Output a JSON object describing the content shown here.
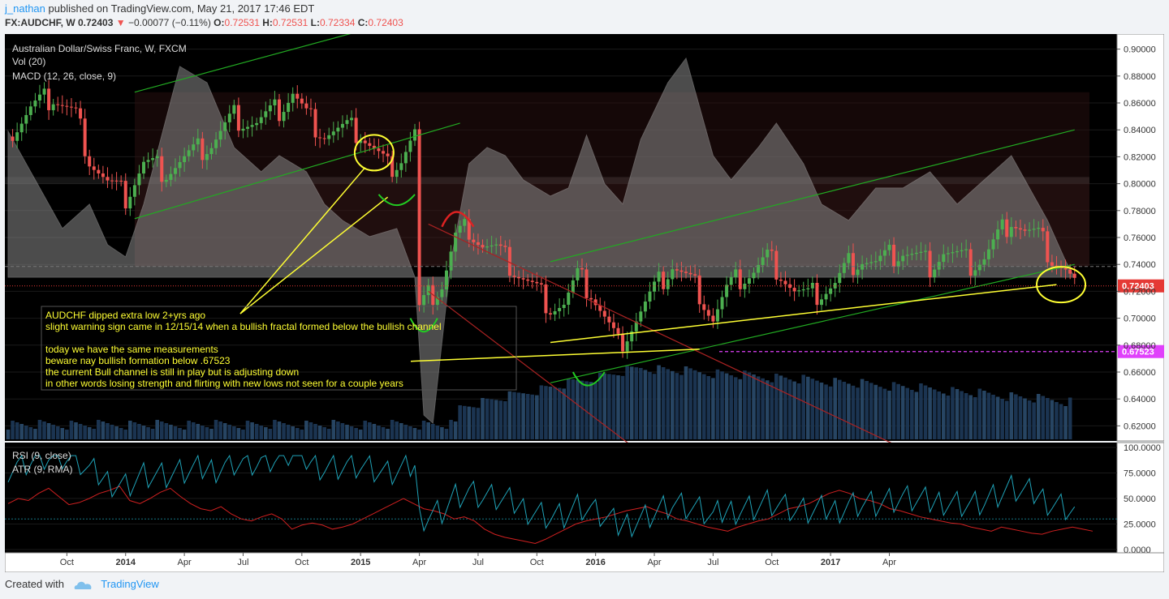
{
  "header": {
    "user": "j_nathan",
    "published": "published on TradingView.com, May 21, 2017 17:46 EDT",
    "symbol": "FX:AUDCHF, W",
    "last": "0.72403",
    "change": "−0.00077 (−0.11%)",
    "o_label": "O:",
    "o": "0.72531",
    "h_label": "H:",
    "h": "0.72531",
    "l_label": "L:",
    "l": "0.72334",
    "c_label": "C:",
    "c": "0.72403"
  },
  "footer": {
    "created_with": "Created with",
    "brand": "TradingView"
  },
  "colors": {
    "bg": "#000000",
    "up": "#4caf50",
    "down": "#ef5350",
    "axis_bg": "#ffffff",
    "annotation": "#ffff33",
    "channel": "#22aa22",
    "down_channel": "#aa2222",
    "rsi": "#1fa3b8",
    "atr": "#d02020",
    "price_tag": "#e53935",
    "level_tag": "#e040fb"
  },
  "chart_data": [
    {
      "type": "candlestick",
      "title": "Australian Dollar/Swiss Franc, W, FXCM",
      "indicator_labels": [
        "Vol (20)",
        "MACD (12, 26, close, 9)"
      ],
      "y_ticks": [
        "0.90000",
        "0.88000",
        "0.86000",
        "0.84000",
        "0.82000",
        "0.80000",
        "0.78000",
        "0.76000",
        "0.74000",
        "0.72000",
        "0.70000",
        "0.68000",
        "0.66000",
        "0.64000",
        "0.62000"
      ],
      "ylim": [
        0.61,
        0.91
      ],
      "x_ticks": [
        "Oct",
        "2014",
        "Apr",
        "Jul",
        "Oct",
        "2015",
        "Apr",
        "Jul",
        "Oct",
        "2016",
        "Apr",
        "Jul",
        "Oct",
        "2017",
        "Apr"
      ],
      "last_price": {
        "label": "0.72403",
        "value": 0.72403
      },
      "level": {
        "label": "0.67523",
        "value": 0.67523
      },
      "ref_level": 0.7385,
      "price_path": [
        [
          0,
          0.835
        ],
        [
          5,
          0.855
        ],
        [
          10,
          0.865
        ],
        [
          15,
          0.85
        ],
        [
          18,
          0.82
        ],
        [
          22,
          0.8
        ],
        [
          26,
          0.79
        ],
        [
          30,
          0.815
        ],
        [
          35,
          0.81
        ],
        [
          40,
          0.82
        ],
        [
          45,
          0.83
        ],
        [
          50,
          0.85
        ],
        [
          55,
          0.845
        ],
        [
          60,
          0.855
        ],
        [
          63,
          0.868
        ],
        [
          66,
          0.85
        ],
        [
          70,
          0.838
        ],
        [
          75,
          0.84
        ],
        [
          78,
          0.838
        ],
        [
          81,
          0.825
        ],
        [
          84,
          0.812
        ],
        [
          87,
          0.82
        ],
        [
          90,
          0.838
        ],
        [
          91,
          0.705
        ],
        [
          93,
          0.715
        ],
        [
          96,
          0.725
        ],
        [
          99,
          0.76
        ],
        [
          102,
          0.768
        ],
        [
          105,
          0.755
        ],
        [
          108,
          0.75
        ],
        [
          111,
          0.74
        ],
        [
          114,
          0.73
        ],
        [
          117,
          0.72
        ],
        [
          120,
          0.71
        ],
        [
          123,
          0.71
        ],
        [
          126,
          0.73
        ],
        [
          129,
          0.72
        ],
        [
          132,
          0.7
        ],
        [
          135,
          0.68
        ],
        [
          138,
          0.695
        ],
        [
          141,
          0.71
        ],
        [
          144,
          0.725
        ],
        [
          147,
          0.74
        ],
        [
          150,
          0.73
        ],
        [
          153,
          0.72
        ],
        [
          156,
          0.7
        ],
        [
          159,
          0.72
        ],
        [
          162,
          0.73
        ],
        [
          165,
          0.735
        ],
        [
          168,
          0.745
        ],
        [
          171,
          0.735
        ],
        [
          174,
          0.72
        ],
        [
          177,
          0.715
        ],
        [
          180,
          0.72
        ],
        [
          183,
          0.725
        ],
        [
          186,
          0.74
        ],
        [
          189,
          0.745
        ],
        [
          192,
          0.74
        ],
        [
          195,
          0.745
        ],
        [
          198,
          0.75
        ],
        [
          201,
          0.745
        ],
        [
          204,
          0.74
        ],
        [
          207,
          0.75
        ],
        [
          210,
          0.745
        ],
        [
          213,
          0.74
        ],
        [
          216,
          0.745
        ],
        [
          219,
          0.76
        ],
        [
          222,
          0.775
        ],
        [
          225,
          0.765
        ],
        [
          228,
          0.76
        ],
        [
          231,
          0.745
        ],
        [
          234,
          0.735
        ],
        [
          236,
          0.724
        ]
      ],
      "channels": [
        {
          "name": "upper-green",
          "x": [
            28,
            140
          ],
          "y": [
            0.868,
            0.97
          ]
        },
        {
          "name": "lower-green",
          "x": [
            28,
            100
          ],
          "y": [
            0.774,
            0.845
          ]
        },
        {
          "name": "lower-green-2",
          "x": [
            120,
            236
          ],
          "y": [
            0.742,
            0.84
          ]
        },
        {
          "name": "support-green",
          "x": [
            120,
            236
          ],
          "y": [
            0.652,
            0.74
          ]
        },
        {
          "name": "down-red-1",
          "x": [
            93,
            200
          ],
          "y": [
            0.77,
            0.6
          ]
        },
        {
          "name": "down-red-2",
          "x": [
            93,
            140
          ],
          "y": [
            0.72,
            0.6
          ]
        }
      ]
    },
    {
      "type": "line",
      "title": "",
      "indicator_labels": [
        "RSI (9, close)",
        "ATR (9, RMA)"
      ],
      "y_ticks": [
        "100.0000",
        "75.0000",
        "50.0000",
        "25.0000",
        "0.0000"
      ],
      "ylim": [
        0,
        100
      ],
      "series": [
        {
          "name": "RSI (9, close)",
          "values": [
            45,
            50,
            48,
            55,
            60,
            52,
            44,
            46,
            50,
            55,
            58,
            62,
            48,
            45,
            50,
            56,
            60,
            52,
            45,
            40,
            38,
            42,
            35,
            30,
            28,
            32,
            35,
            30,
            20,
            24,
            26,
            24,
            20,
            22,
            25,
            30,
            35,
            40,
            45,
            50,
            45,
            40,
            38,
            35,
            30,
            32,
            28,
            20,
            15,
            12,
            10,
            8,
            6,
            10,
            15,
            20,
            25,
            28,
            30,
            32,
            35,
            38,
            40,
            42,
            38,
            35,
            30,
            28,
            25,
            22,
            20,
            18,
            22,
            25,
            28,
            30,
            35,
            40,
            42,
            45,
            50,
            55,
            58,
            55,
            50,
            48,
            45,
            40,
            38,
            35,
            32,
            30,
            28,
            26,
            25,
            22,
            20,
            18,
            22,
            20,
            18,
            16,
            15,
            18,
            20,
            22,
            20,
            18
          ]
        }
      ]
    }
  ],
  "annotation": {
    "lines": [
      "AUDCHF dipped extra low 2+yrs ago",
      "slight warning sign came in 12/15/14 when a bullish fractal formed below the bullish channel",
      "",
      "today we have the same measurements",
      "beware nay bullish formation below .67523",
      "the current Bull channel is still in play but is adjusting down",
      "in other words losing strength and flirting with new lows not seen for a couple years"
    ]
  }
}
